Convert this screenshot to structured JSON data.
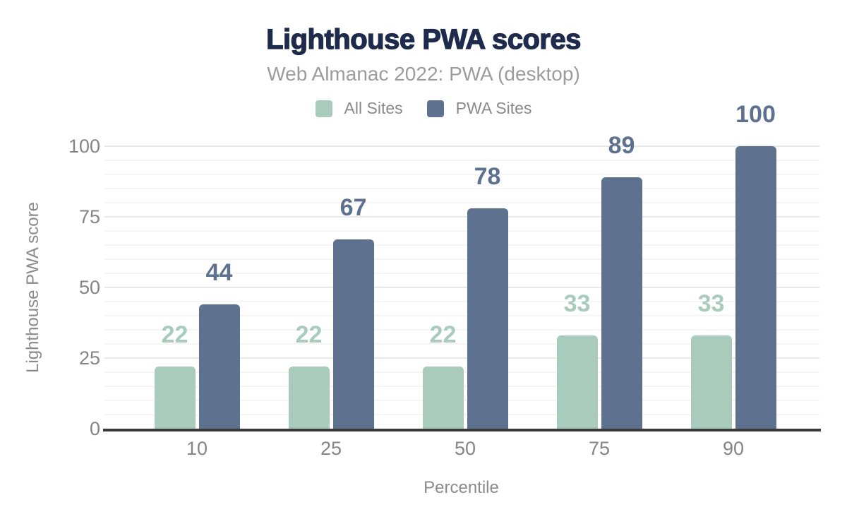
{
  "chart_data": {
    "type": "bar",
    "title": "Lighthouse PWA scores",
    "subtitle": "Web Almanac 2022: PWA (desktop)",
    "categories": [
      "10",
      "25",
      "50",
      "75",
      "90"
    ],
    "series": [
      {
        "name": "All Sites",
        "color": "#a9cbbc",
        "values": [
          22,
          22,
          22,
          33,
          33
        ]
      },
      {
        "name": "PWA Sites",
        "color": "#5e718e",
        "values": [
          44,
          67,
          78,
          89,
          100
        ]
      }
    ],
    "xlabel": "Percentile",
    "ylabel": "Lighthouse PWA score",
    "ylim": [
      0,
      100
    ],
    "yticks": [
      0,
      25,
      50,
      75,
      100
    ],
    "grid": {
      "minor_step": 5,
      "major_step": 25,
      "minor_color": "#f5f5f5",
      "major_color": "#e9e9e9"
    },
    "legend_position": "top",
    "data_labels": true
  },
  "colors": {
    "title": "#1f2b4c",
    "subtitle": "#9c9c9c",
    "legend_text": "#8a8a8a",
    "tick_text": "#858585",
    "axis_title_text": "#8a8a8a",
    "axis_line": "#3a3a3a",
    "background": "#ffffff"
  }
}
